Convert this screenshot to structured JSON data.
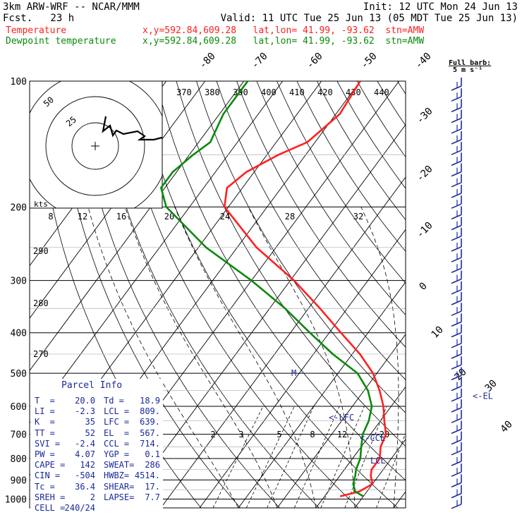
{
  "header": {
    "model": "3km ARW-WRF -- NCAR/MMM",
    "init": "Init: 12 UTC Mon 24 Jun 13",
    "fcst": "Fcst.   23 h",
    "valid": "Valid: 11 UTC Tue 25 Jun 13 (05 MDT Tue 25 Jun 13)",
    "temp_label": "Temperature",
    "temp_info": "x,y=592.84,609.28   lat,lon= 41.99, -93.62  stn=AMW",
    "dew_label": "Dewpoint temperature",
    "dew_info": "x,y=592.84,609.28   lat,lon= 41.99, -93.62  stn=AMW",
    "barb_title": "Full barb:",
    "barb_unit": "5 m s⁻¹"
  },
  "colors": {
    "temperature": "#ff2020",
    "dewpoint": "#0a8a0a",
    "panel_text": "#1a2a9a",
    "barbs": "#1a2a9a"
  },
  "chart_data": {
    "type": "line",
    "subtype": "skew-T log-P sounding",
    "y_scale": "log",
    "ylabel": "",
    "xlabel": "",
    "pressure_ticks": [
      100,
      200,
      300,
      400,
      500,
      600,
      700,
      800,
      900,
      1000
    ],
    "ylim": [
      1000,
      100
    ],
    "isotherm_labels": [
      -80,
      -70,
      -60,
      -50,
      -40,
      -30,
      -20,
      -10,
      0,
      10,
      20,
      30,
      40
    ],
    "theta_labels_upper": [
      370,
      380,
      390,
      400,
      410,
      420,
      430,
      440
    ],
    "theta_labels_lower": [
      290,
      280,
      270
    ],
    "mixing_ratio_labels": [
      2,
      3,
      5,
      8,
      12,
      20
    ],
    "series": [
      {
        "name": "Temperature",
        "pressure": [
          100,
          120,
          140,
          150,
          165,
          180,
          200,
          250,
          300,
          350,
          400,
          450,
          500,
          550,
          600,
          650,
          700,
          750,
          800,
          850,
          880,
          920,
          960,
          985
        ],
        "values": [
          -60,
          -59,
          -62,
          -67,
          -72,
          -74,
          -71,
          -55,
          -39,
          -27,
          -17,
          -8,
          -1,
          4,
          8,
          11,
          14,
          15,
          17,
          17,
          18,
          20,
          18,
          14
        ]
      },
      {
        "name": "Dewpoint temperature",
        "pressure": [
          100,
          120,
          140,
          150,
          165,
          180,
          200,
          250,
          300,
          350,
          400,
          450,
          500,
          550,
          600,
          650,
          700,
          750,
          800,
          850,
          880,
          920,
          960,
          985
        ],
        "values": [
          -89,
          -89,
          -87,
          -89,
          -91,
          -91,
          -86,
          -68,
          -50,
          -36,
          -25,
          -15,
          -5,
          1,
          5,
          7,
          8,
          10,
          12,
          13,
          14,
          15,
          17,
          20
        ]
      }
    ],
    "levels": [
      {
        "label": "M",
        "pressure": 500
      },
      {
        "label": "<-EL",
        "pressure": 567
      },
      {
        "label": "<-LFC",
        "pressure": 639
      },
      {
        "label": "<-CCL",
        "pressure": 714
      },
      {
        "label": "LCL",
        "pressure": 809
      }
    ]
  },
  "hodograph": {
    "units": "kts",
    "rings": [
      "25",
      "50"
    ],
    "speed_labels": [
      "8",
      "12",
      "16",
      "20",
      "24",
      "28",
      "32"
    ]
  },
  "parcel_info": {
    "title": "Parcel Info",
    "rows": [
      [
        "T  =",
        "20.0",
        "Td =",
        "18.9"
      ],
      [
        "LI =",
        "-2.3",
        "LCL =",
        "809."
      ],
      [
        "K  =",
        "35",
        "LFC =",
        "639."
      ],
      [
        "TT =",
        "52",
        "EL  =",
        "567."
      ],
      [
        "SVI =",
        "-2.4",
        "CCL =",
        "714."
      ],
      [
        "PW =",
        "4.07",
        "YGP =",
        "0.1"
      ],
      [
        "CAPE =",
        "142",
        "SWEAT=",
        "286"
      ],
      [
        "CIN =",
        "-504",
        "HWBZ=",
        "4514."
      ],
      [
        "Tc =",
        "36.4",
        "SHEAR=",
        "17."
      ],
      [
        "SREH =",
        "2",
        "LAPSE=",
        "7.7"
      ],
      [
        "CELL =",
        "240/24",
        "",
        ""
      ]
    ]
  }
}
